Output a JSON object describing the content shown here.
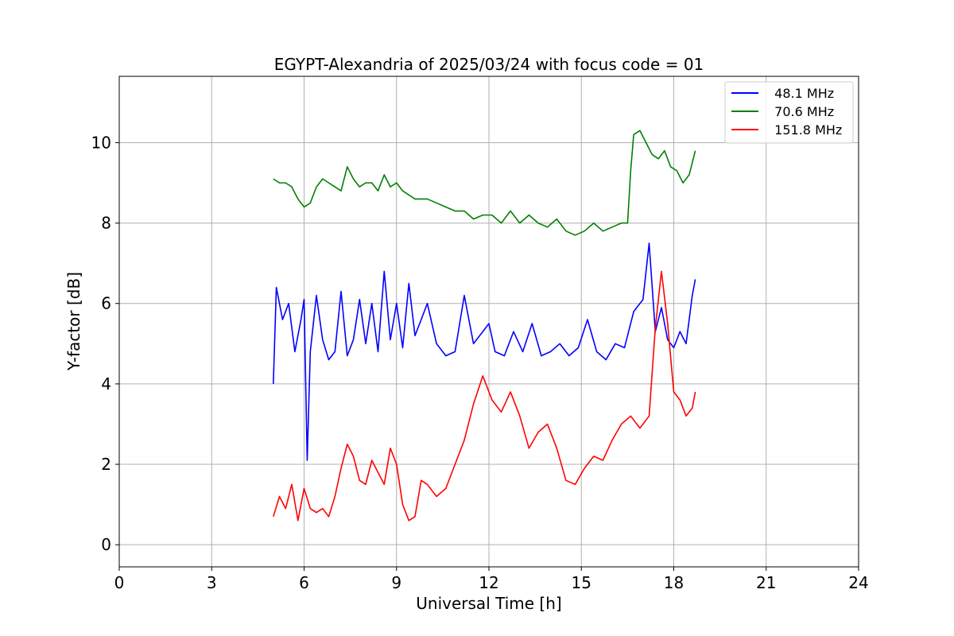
{
  "chart_data": {
    "type": "line",
    "title": "EGYPT-Alexandria of 2025/03/24 with focus code = 01",
    "xlabel": "Universal Time [h]",
    "ylabel": "Y-factor [dB]",
    "xlim": [
      0,
      24
    ],
    "ylim": [
      -0.55,
      11.65
    ],
    "xticks": [
      0,
      3,
      6,
      9,
      12,
      15,
      18,
      21,
      24
    ],
    "yticks": [
      0,
      2,
      4,
      6,
      8,
      10
    ],
    "grid": true,
    "legend_position": "top-right",
    "series": [
      {
        "name": "  48.1 MHz",
        "color": "#0000ff",
        "x": [
          5.0,
          5.1,
          5.3,
          5.5,
          5.7,
          5.9,
          6.0,
          6.1,
          6.2,
          6.4,
          6.6,
          6.8,
          7.0,
          7.2,
          7.4,
          7.6,
          7.8,
          8.0,
          8.2,
          8.4,
          8.6,
          8.8,
          9.0,
          9.2,
          9.4,
          9.6,
          9.8,
          10.0,
          10.3,
          10.6,
          10.9,
          11.2,
          11.5,
          11.8,
          12.0,
          12.2,
          12.5,
          12.8,
          13.1,
          13.4,
          13.7,
          14.0,
          14.3,
          14.6,
          14.9,
          15.2,
          15.5,
          15.8,
          16.1,
          16.4,
          16.7,
          17.0,
          17.2,
          17.4,
          17.6,
          17.8,
          18.0,
          18.2,
          18.4,
          18.6,
          18.7
        ],
        "y": [
          4.0,
          6.4,
          5.6,
          6.0,
          4.8,
          5.6,
          6.1,
          2.1,
          4.8,
          6.2,
          5.1,
          4.6,
          4.8,
          6.3,
          4.7,
          5.1,
          6.1,
          5.0,
          6.0,
          4.8,
          6.8,
          5.1,
          6.0,
          4.9,
          6.5,
          5.2,
          5.6,
          6.0,
          5.0,
          4.7,
          4.8,
          6.2,
          5.0,
          5.3,
          5.5,
          4.8,
          4.7,
          5.3,
          4.8,
          5.5,
          4.7,
          4.8,
          5.0,
          4.7,
          4.9,
          5.6,
          4.8,
          4.6,
          5.0,
          4.9,
          5.8,
          6.1,
          7.5,
          5.3,
          5.9,
          5.1,
          4.9,
          5.3,
          5.0,
          6.2,
          6.6
        ]
      },
      {
        "name": "  70.6 MHz",
        "color": "#008000",
        "x": [
          5.0,
          5.2,
          5.4,
          5.6,
          5.8,
          6.0,
          6.2,
          6.4,
          6.6,
          6.8,
          7.0,
          7.2,
          7.4,
          7.6,
          7.8,
          8.0,
          8.2,
          8.4,
          8.6,
          8.8,
          9.0,
          9.2,
          9.4,
          9.6,
          9.8,
          10.0,
          10.3,
          10.6,
          10.9,
          11.2,
          11.5,
          11.8,
          12.1,
          12.4,
          12.7,
          13.0,
          13.3,
          13.6,
          13.9,
          14.2,
          14.5,
          14.8,
          15.1,
          15.4,
          15.7,
          16.0,
          16.3,
          16.5,
          16.6,
          16.7,
          16.9,
          17.1,
          17.3,
          17.5,
          17.7,
          17.9,
          18.1,
          18.3,
          18.5,
          18.7
        ],
        "y": [
          9.1,
          9.0,
          9.0,
          8.9,
          8.6,
          8.4,
          8.5,
          8.9,
          9.1,
          9.0,
          8.9,
          8.8,
          9.4,
          9.1,
          8.9,
          9.0,
          9.0,
          8.8,
          9.2,
          8.9,
          9.0,
          8.8,
          8.7,
          8.6,
          8.6,
          8.6,
          8.5,
          8.4,
          8.3,
          8.3,
          8.1,
          8.2,
          8.2,
          8.0,
          8.3,
          8.0,
          8.2,
          8.0,
          7.9,
          8.1,
          7.8,
          7.7,
          7.8,
          8.0,
          7.8,
          7.9,
          8.0,
          8.0,
          9.3,
          10.2,
          10.3,
          10.0,
          9.7,
          9.6,
          9.8,
          9.4,
          9.3,
          9.0,
          9.2,
          9.8
        ]
      },
      {
        "name": "  151.8 MHz",
        "color": "#ff0000",
        "x": [
          5.0,
          5.2,
          5.4,
          5.6,
          5.8,
          6.0,
          6.2,
          6.4,
          6.6,
          6.8,
          7.0,
          7.2,
          7.4,
          7.6,
          7.8,
          8.0,
          8.2,
          8.4,
          8.6,
          8.8,
          9.0,
          9.2,
          9.4,
          9.6,
          9.8,
          10.0,
          10.3,
          10.6,
          10.9,
          11.2,
          11.5,
          11.8,
          12.1,
          12.4,
          12.7,
          13.0,
          13.3,
          13.6,
          13.9,
          14.2,
          14.5,
          14.8,
          15.1,
          15.4,
          15.7,
          16.0,
          16.3,
          16.6,
          16.9,
          17.2,
          17.4,
          17.6,
          17.8,
          18.0,
          18.2,
          18.4,
          18.6,
          18.7
        ],
        "y": [
          0.7,
          1.2,
          0.9,
          1.5,
          0.6,
          1.4,
          0.9,
          0.8,
          0.9,
          0.7,
          1.2,
          1.9,
          2.5,
          2.2,
          1.6,
          1.5,
          2.1,
          1.8,
          1.5,
          2.4,
          2.0,
          1.0,
          0.6,
          0.7,
          1.6,
          1.5,
          1.2,
          1.4,
          2.0,
          2.6,
          3.5,
          4.2,
          3.6,
          3.3,
          3.8,
          3.2,
          2.4,
          2.8,
          3.0,
          2.4,
          1.6,
          1.5,
          1.9,
          2.2,
          2.1,
          2.6,
          3.0,
          3.2,
          2.9,
          3.2,
          5.4,
          6.8,
          5.5,
          3.8,
          3.6,
          3.2,
          3.4,
          3.8
        ]
      }
    ]
  }
}
